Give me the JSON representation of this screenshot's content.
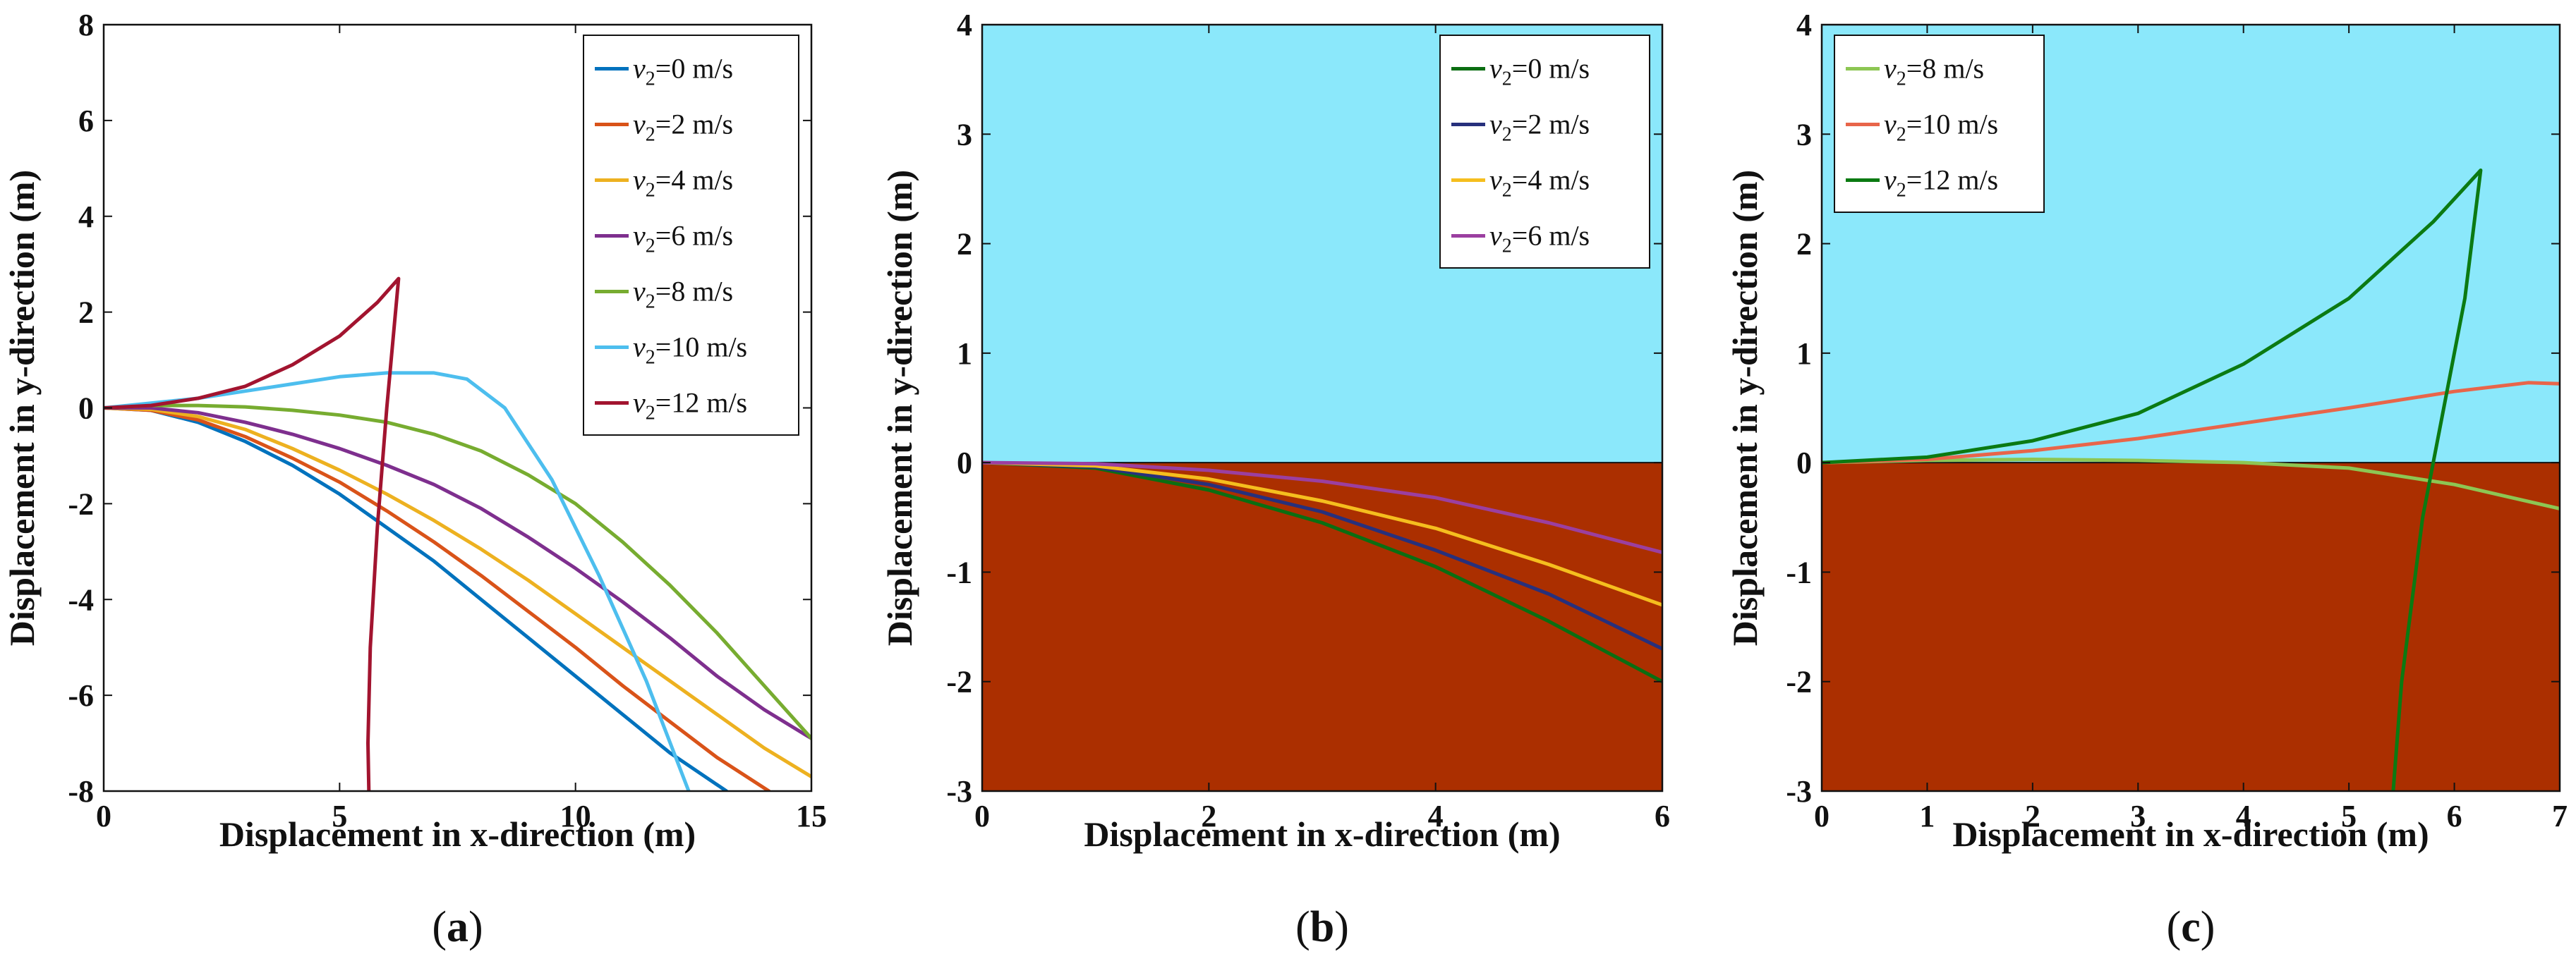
{
  "chart_data": [
    {
      "type": "line",
      "panel": "a",
      "caption_paren_open": "(",
      "caption_letter": "a",
      "caption_paren_close": ")",
      "xlabel": "Displacement in x-direction (m)",
      "ylabel": "Displacement in y-direction (m)",
      "xlim": [
        0,
        15
      ],
      "ylim": [
        -8,
        8
      ],
      "xticks": [
        0,
        5,
        10,
        15
      ],
      "xtick_labels": [
        "0",
        "5",
        "10",
        "15"
      ],
      "yticks": [
        -8,
        -6,
        -4,
        -2,
        0,
        2,
        4,
        6,
        8
      ],
      "ytick_labels": [
        "-8",
        "-6",
        "-4",
        "-2",
        "0",
        "2",
        "4",
        "6",
        "8"
      ],
      "legend_position": "top-right",
      "series": [
        {
          "name": "v2=0 m/s",
          "legend_var": "v",
          "legend_sub": "2",
          "legend_rest": "=0 m/s",
          "color": "#0072BD",
          "x": [
            0,
            1,
            2,
            3,
            4,
            5,
            6,
            7,
            8,
            9,
            10,
            11,
            12,
            13.2
          ],
          "y": [
            0,
            -0.05,
            -0.3,
            -0.7,
            -1.2,
            -1.8,
            -2.5,
            -3.2,
            -4.0,
            -4.8,
            -5.6,
            -6.4,
            -7.2,
            -8.0
          ]
        },
        {
          "name": "v2=2 m/s",
          "legend_var": "v",
          "legend_sub": "2",
          "legend_rest": "=2 m/s",
          "color": "#D95319",
          "x": [
            0,
            1,
            2,
            3,
            4,
            5,
            6,
            7,
            8,
            9,
            10,
            11,
            12,
            13,
            14.1
          ],
          "y": [
            0,
            -0.05,
            -0.25,
            -0.6,
            -1.05,
            -1.55,
            -2.15,
            -2.8,
            -3.5,
            -4.25,
            -5.0,
            -5.8,
            -6.55,
            -7.3,
            -8.0
          ]
        },
        {
          "name": "v2=4 m/s",
          "legend_var": "v",
          "legend_sub": "2",
          "legend_rest": "=4 m/s",
          "color": "#EDB120",
          "x": [
            0,
            1,
            2,
            3,
            4,
            5,
            6,
            7,
            8,
            9,
            10,
            11,
            12,
            13,
            14,
            15
          ],
          "y": [
            0,
            -0.03,
            -0.18,
            -0.45,
            -0.85,
            -1.3,
            -1.8,
            -2.35,
            -2.95,
            -3.6,
            -4.3,
            -5.0,
            -5.7,
            -6.4,
            -7.1,
            -7.7
          ]
        },
        {
          "name": "v2=6 m/s",
          "legend_var": "v",
          "legend_sub": "2",
          "legend_rest": "=6 m/s",
          "color": "#7E2F8E",
          "x": [
            0,
            1,
            2,
            3,
            4,
            5,
            6,
            7,
            8,
            9,
            10,
            11,
            12,
            13,
            14,
            15
          ],
          "y": [
            0,
            0.0,
            -0.1,
            -0.3,
            -0.55,
            -0.85,
            -1.2,
            -1.6,
            -2.1,
            -2.7,
            -3.35,
            -4.05,
            -4.8,
            -5.6,
            -6.3,
            -6.9
          ]
        },
        {
          "name": "v2=8 m/s",
          "legend_var": "v",
          "legend_sub": "2",
          "legend_rest": "=8 m/s",
          "color": "#77AC30",
          "x": [
            0,
            1,
            2,
            3,
            4,
            5,
            6,
            7,
            8,
            9,
            10,
            11,
            12,
            13,
            14,
            15
          ],
          "y": [
            0,
            0.05,
            0.05,
            0.02,
            -0.05,
            -0.15,
            -0.3,
            -0.55,
            -0.9,
            -1.4,
            -2.0,
            -2.8,
            -3.7,
            -4.7,
            -5.8,
            -6.9
          ]
        },
        {
          "name": "v2=10 m/s",
          "legend_var": "v",
          "legend_sub": "2",
          "legend_rest": "=10 m/s",
          "color": "#4DBEEE",
          "x": [
            0,
            1,
            2,
            3,
            4,
            5,
            6,
            7,
            7.7,
            8.5,
            9.5,
            10.5,
            11.5,
            12.4
          ],
          "y": [
            0,
            0.1,
            0.2,
            0.35,
            0.5,
            0.65,
            0.73,
            0.73,
            0.6,
            0.0,
            -1.5,
            -3.5,
            -5.7,
            -8.0
          ]
        },
        {
          "name": "v2=12 m/s",
          "legend_var": "v",
          "legend_sub": "2",
          "legend_rest": "=12 m/s",
          "color": "#A2142F",
          "x": [
            0,
            1,
            2,
            3,
            4,
            5,
            5.8,
            6.25,
            6.0,
            5.8,
            5.65,
            5.6,
            5.62
          ],
          "y": [
            0,
            0.05,
            0.2,
            0.45,
            0.9,
            1.5,
            2.2,
            2.7,
            0.0,
            -2.5,
            -5.0,
            -7.0,
            -8.0
          ]
        }
      ]
    },
    {
      "type": "line",
      "panel": "b",
      "caption_paren_open": "(",
      "caption_letter": "b",
      "caption_paren_close": ")",
      "xlabel": "Displacement in x-direction (m)",
      "ylabel": "Displacement in y-direction (m)",
      "xlim": [
        0,
        6
      ],
      "ylim": [
        -3,
        4
      ],
      "xticks": [
        0,
        2,
        4,
        6
      ],
      "xtick_labels": [
        "0",
        "2",
        "4",
        "6"
      ],
      "yticks": [
        -3,
        -2,
        -1,
        0,
        1,
        2,
        3,
        4
      ],
      "ytick_labels": [
        "-3",
        "-2",
        "-1",
        "0",
        "1",
        "2",
        "3",
        "4"
      ],
      "background": {
        "above_zero": "#8BE8FB",
        "below_zero": "#AB2F00"
      },
      "legend_position": "top-right",
      "series": [
        {
          "name": "v2=0 m/s",
          "legend_var": "v",
          "legend_sub": "2",
          "legend_rest": "=0 m/s",
          "color": "#0B6E12",
          "x": [
            0,
            1,
            2,
            3,
            4,
            5,
            6
          ],
          "y": [
            0,
            -0.05,
            -0.25,
            -0.55,
            -0.95,
            -1.45,
            -2.0
          ]
        },
        {
          "name": "v2=2 m/s",
          "legend_var": "v",
          "legend_sub": "2",
          "legend_rest": "=2 m/s",
          "color": "#27307C",
          "x": [
            0,
            1,
            2,
            3,
            4,
            5,
            6
          ],
          "y": [
            0,
            -0.04,
            -0.2,
            -0.45,
            -0.8,
            -1.2,
            -1.7
          ]
        },
        {
          "name": "v2=4 m/s",
          "legend_var": "v",
          "legend_sub": "2",
          "legend_rest": "=4 m/s",
          "color": "#F5BE1E",
          "x": [
            0,
            1,
            2,
            3,
            4,
            5,
            6
          ],
          "y": [
            0,
            -0.03,
            -0.15,
            -0.35,
            -0.6,
            -0.93,
            -1.3
          ]
        },
        {
          "name": "v2=6 m/s",
          "legend_var": "v",
          "legend_sub": "2",
          "legend_rest": "=6 m/s",
          "color": "#9B3FA0",
          "x": [
            0,
            1,
            2,
            3,
            4,
            5,
            6
          ],
          "y": [
            0,
            -0.01,
            -0.07,
            -0.17,
            -0.32,
            -0.55,
            -0.82
          ]
        }
      ]
    },
    {
      "type": "line",
      "panel": "c",
      "caption_paren_open": "(",
      "caption_letter": "c",
      "caption_paren_close": ")",
      "xlabel": "Displacement in x-direction (m)",
      "ylabel": "Displacement in y-direction (m)",
      "xlim": [
        0,
        7
      ],
      "ylim": [
        -3,
        4
      ],
      "xticks": [
        0,
        1,
        2,
        3,
        4,
        5,
        6,
        7
      ],
      "xtick_labels": [
        "0",
        "1",
        "2",
        "3",
        "4",
        "5",
        "6",
        "7"
      ],
      "yticks": [
        -3,
        -2,
        -1,
        0,
        1,
        2,
        3,
        4
      ],
      "ytick_labels": [
        "-3",
        "-2",
        "-1",
        "0",
        "1",
        "2",
        "3",
        "4"
      ],
      "background": {
        "above_zero": "#8BE8FB",
        "below_zero": "#AB2F00"
      },
      "legend_position": "top-left",
      "series": [
        {
          "name": "v2=8 m/s",
          "legend_var": "v",
          "legend_sub": "2",
          "legend_rest": "=8 m/s",
          "color": "#8DC653",
          "x": [
            0,
            1,
            2,
            3,
            4,
            5,
            6,
            7
          ],
          "y": [
            0,
            0.02,
            0.03,
            0.02,
            0.0,
            -0.05,
            -0.2,
            -0.42
          ]
        },
        {
          "name": "v2=10 m/s",
          "legend_var": "v",
          "legend_sub": "2",
          "legend_rest": "=10 m/s",
          "color": "#E8654A",
          "x": [
            0,
            1,
            2,
            3,
            4,
            5,
            6,
            6.7,
            7
          ],
          "y": [
            0,
            0.03,
            0.11,
            0.22,
            0.36,
            0.5,
            0.65,
            0.73,
            0.72
          ]
        },
        {
          "name": "v2=12 m/s",
          "legend_var": "v",
          "legend_sub": "2",
          "legend_rest": "=12 m/s",
          "color": "#0B7A12",
          "x": [
            0,
            1,
            2,
            3,
            4,
            5,
            5.8,
            6.25,
            6.1,
            5.9,
            5.7,
            5.5,
            5.42
          ],
          "y": [
            0,
            0.05,
            0.2,
            0.45,
            0.9,
            1.5,
            2.2,
            2.67,
            1.5,
            0.5,
            -0.5,
            -2.0,
            -3.0
          ]
        }
      ]
    }
  ]
}
